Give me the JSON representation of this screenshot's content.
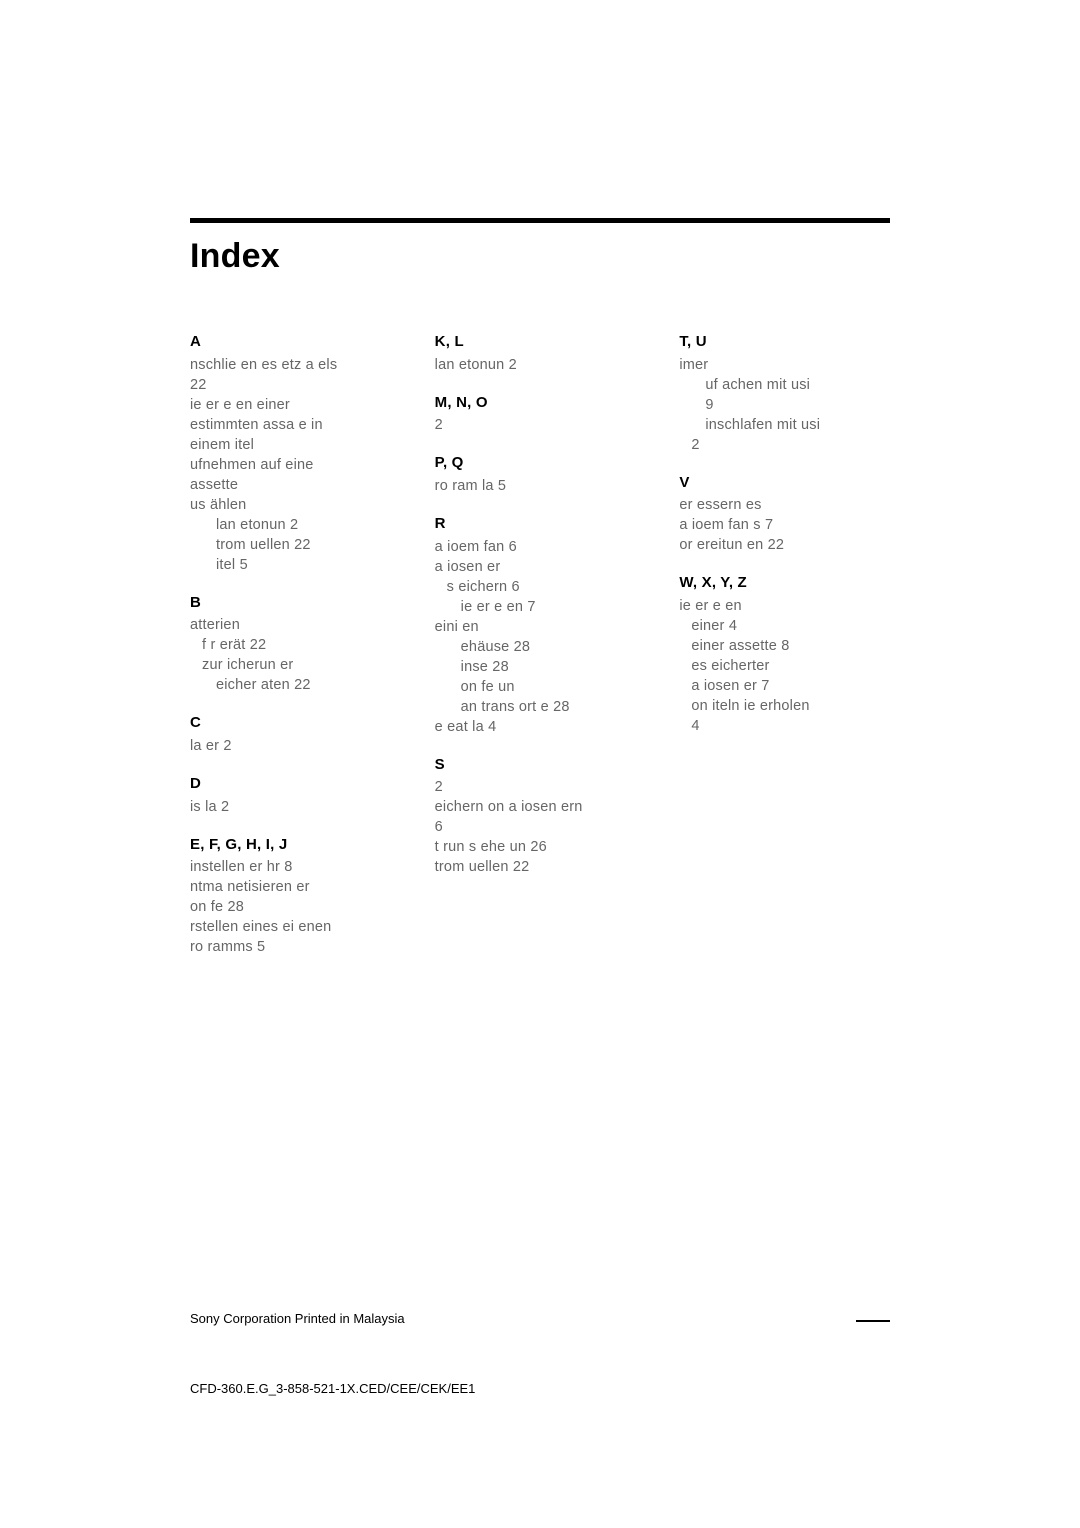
{
  "title": "Index",
  "footer1": "Sony Corporation   Printed in Malaysia",
  "footer2": "CFD-360.E.G_3-858-521-1X.CED/CEE/CEK/EE1",
  "col1": {
    "A": {
      "head": "A",
      "lines": [
        {
          "t": " nschlie en  es   etz a els ",
          "cls": ""
        },
        {
          "t": "22",
          "cls": ""
        },
        {
          "t": "   ie er e en einer",
          "cls": ""
        },
        {
          "t": "  estimmten   assa e in",
          "cls": ""
        },
        {
          "t": "einem  itel",
          "cls": ""
        },
        {
          "t": " ufnehmen auf eine",
          "cls": ""
        },
        {
          "t": " assette",
          "cls": ""
        },
        {
          "t": " us  ählen",
          "cls": ""
        },
        {
          "t": " lan  etonun   2",
          "cls": "in2"
        },
        {
          "t": " trom uellen  22",
          "cls": "in2"
        },
        {
          "t": " itel  5",
          "cls": "in2"
        }
      ]
    },
    "B": {
      "head": "B",
      "lines": [
        {
          "t": " atterien",
          "cls": ""
        },
        {
          "t": "f r   erät 22",
          "cls": "in1"
        },
        {
          "t": "zur  icherun    er",
          "cls": "in1"
        },
        {
          "t": " eicher aten  22",
          "cls": "in2"
        }
      ]
    },
    "C": {
      "head": "C",
      "lines": [
        {
          "t": "   la er   2",
          "cls": ""
        }
      ]
    },
    "D": {
      "head": "D",
      "lines": [
        {
          "t": " is la    2",
          "cls": ""
        }
      ]
    },
    "E": {
      "head": "E, F, G, H, I, J",
      "lines": [
        {
          "t": " instellen  er   hr   8",
          "cls": ""
        },
        {
          "t": " ntma netisieren  er",
          "cls": ""
        },
        {
          "t": " on     fe  28",
          "cls": ""
        },
        {
          "t": " rstellen eines ei enen",
          "cls": ""
        },
        {
          "t": " ro ramms   5",
          "cls": ""
        }
      ]
    }
  },
  "col2": {
    "K": {
      "head": "K, L",
      "lines": [
        {
          "t": " lan   etonun   2",
          "cls": ""
        }
      ]
    },
    "M": {
      "head": "M, N, O",
      "lines": [
        {
          "t": "          2",
          "cls": ""
        }
      ]
    },
    "P": {
      "head": "P, Q",
      "lines": [
        {
          "t": " ro ram   la    5",
          "cls": ""
        }
      ]
    },
    "R": {
      "head": "R",
      "lines": [
        {
          "t": " a ioem fan    6",
          "cls": ""
        },
        {
          "t": " a iosen er",
          "cls": ""
        },
        {
          "t": " s eichern   6",
          "cls": "in1"
        },
        {
          "t": "  ie er e en   7",
          "cls": "in2"
        },
        {
          "t": " eini en",
          "cls": ""
        },
        {
          "t": " ehäuse  28",
          "cls": "in2"
        },
        {
          "t": " inse  28",
          "cls": "in2"
        },
        {
          "t": " on     fe un ",
          "cls": "in2"
        },
        {
          "t": " an trans ort e   28",
          "cls": "in2"
        },
        {
          "t": " e eat  la    4",
          "cls": ""
        }
      ]
    },
    "S": {
      "head": "S",
      "lines": [
        {
          "t": "         2",
          "cls": ""
        },
        {
          "t": " eichern  on  a iosen ern ",
          "cls": ""
        },
        {
          "t": " 6",
          "cls": ""
        },
        {
          "t": " t run s ehe un   26",
          "cls": ""
        },
        {
          "t": " trom uellen  22",
          "cls": ""
        }
      ]
    }
  },
  "col3": {
    "T": {
      "head": "T, U",
      "lines": [
        {
          "t": " imer",
          "cls": ""
        },
        {
          "t": " uf  achen mit   usi  ",
          "cls": "in2"
        },
        {
          "t": " 9",
          "cls": "in2"
        },
        {
          "t": " inschlafen mit   usi  ",
          "cls": "in2"
        },
        {
          "t": " 2",
          "cls": "in1"
        }
      ]
    },
    "V": {
      "head": "V",
      "lines": [
        {
          "t": " er essern  es",
          "cls": ""
        },
        {
          "t": " a ioem fan s  7",
          "cls": ""
        },
        {
          "t": " or ereitun en  22",
          "cls": ""
        }
      ]
    },
    "W": {
      "head": "W, X, Y, Z",
      "lines": [
        {
          "t": " ie er e en",
          "cls": ""
        },
        {
          "t": "einer      4",
          "cls": "in1"
        },
        {
          "t": "einer   assette  8",
          "cls": "in1"
        },
        {
          "t": " es eicherter",
          "cls": "in1"
        },
        {
          "t": " a iosen er   7",
          "cls": "in1"
        },
        {
          "t": " on  iteln   ie erholen ",
          "cls": "in1"
        },
        {
          "t": " 4",
          "cls": "in1"
        }
      ]
    }
  }
}
